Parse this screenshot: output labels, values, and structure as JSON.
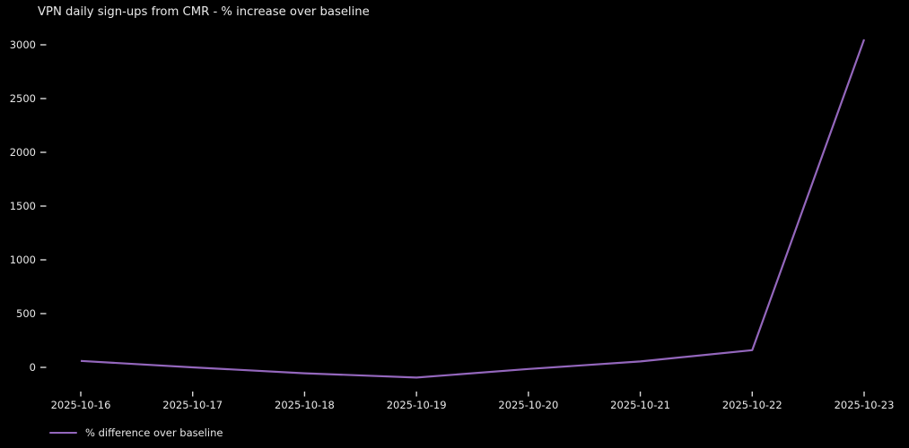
{
  "chart_data": {
    "type": "line",
    "title": "VPN daily sign-ups from CMR - % increase over baseline",
    "categories": [
      "2025-10-16",
      "2025-10-17",
      "2025-10-18",
      "2025-10-19",
      "2025-10-20",
      "2025-10-21",
      "2025-10-22",
      "2025-10-23"
    ],
    "series": [
      {
        "name": "% difference over baseline",
        "color": "#9467bd",
        "values": [
          60,
          0,
          -55,
          -95,
          -15,
          55,
          160,
          3050
        ]
      }
    ],
    "xlabel": "",
    "ylabel": "",
    "y_ticks": [
      0,
      500,
      1000,
      1500,
      2000,
      2500,
      3000
    ],
    "ylim": [
      -250,
      3200
    ],
    "grid": false,
    "legend_position": "lower-left",
    "background_color": "#000000",
    "text_color": "#e8e8e8",
    "tick_color": "#d9d9d9"
  }
}
